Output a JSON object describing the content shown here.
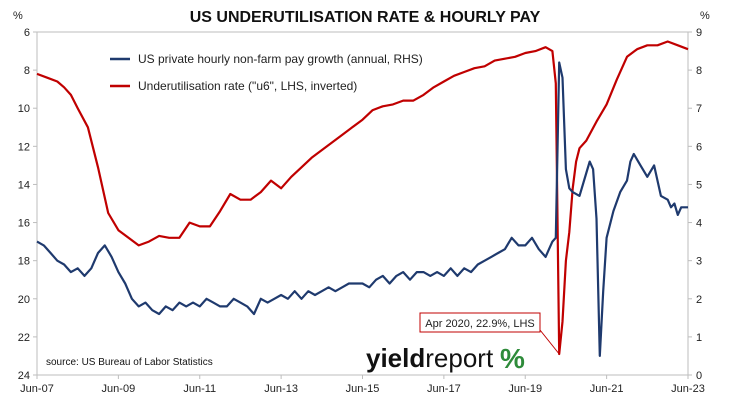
{
  "chart_data": {
    "type": "line",
    "title": "US UNDERUTILISATION RATE & HOURLY PAY",
    "left_axis": {
      "unit": "%",
      "inverted": true,
      "range": [
        24,
        6
      ],
      "ticks": [
        "6",
        "8",
        "10",
        "12",
        "14",
        "16",
        "18",
        "20",
        "22",
        "24"
      ]
    },
    "right_axis": {
      "unit": "%",
      "range": [
        0,
        9
      ],
      "ticks": [
        "0",
        "1",
        "2",
        "3",
        "4",
        "5",
        "6",
        "7",
        "8",
        "9"
      ]
    },
    "x_ticks": [
      "Jun-07",
      "Jun-09",
      "Jun-11",
      "Jun-13",
      "Jun-15",
      "Jun-17",
      "Jun-19",
      "Jun-21",
      "Jun-23"
    ],
    "x_range": [
      "2007-06",
      "2023-06"
    ],
    "grid": false,
    "legend_position": "top-left",
    "series": [
      {
        "name": "US private hourly non-farm pay growth (annual, RHS)",
        "axis": "right",
        "color": "#1f3a6e",
        "points": [
          [
            "2007-06",
            3.5
          ],
          [
            "2007-08",
            3.4
          ],
          [
            "2007-10",
            3.2
          ],
          [
            "2007-12",
            3.0
          ],
          [
            "2008-02",
            2.9
          ],
          [
            "2008-04",
            2.7
          ],
          [
            "2008-06",
            2.8
          ],
          [
            "2008-08",
            2.6
          ],
          [
            "2008-10",
            2.8
          ],
          [
            "2008-12",
            3.2
          ],
          [
            "2009-02",
            3.4
          ],
          [
            "2009-04",
            3.1
          ],
          [
            "2009-06",
            2.7
          ],
          [
            "2009-08",
            2.4
          ],
          [
            "2009-10",
            2.0
          ],
          [
            "2009-12",
            1.8
          ],
          [
            "2010-02",
            1.9
          ],
          [
            "2010-04",
            1.7
          ],
          [
            "2010-06",
            1.6
          ],
          [
            "2010-08",
            1.8
          ],
          [
            "2010-10",
            1.7
          ],
          [
            "2010-12",
            1.9
          ],
          [
            "2011-02",
            1.8
          ],
          [
            "2011-04",
            1.9
          ],
          [
            "2011-06",
            1.8
          ],
          [
            "2011-08",
            2.0
          ],
          [
            "2011-10",
            1.9
          ],
          [
            "2011-12",
            1.8
          ],
          [
            "2012-02",
            1.8
          ],
          [
            "2012-04",
            2.0
          ],
          [
            "2012-06",
            1.9
          ],
          [
            "2012-08",
            1.8
          ],
          [
            "2012-10",
            1.6
          ],
          [
            "2012-12",
            2.0
          ],
          [
            "2013-02",
            1.9
          ],
          [
            "2013-04",
            2.0
          ],
          [
            "2013-06",
            2.1
          ],
          [
            "2013-08",
            2.0
          ],
          [
            "2013-10",
            2.2
          ],
          [
            "2013-12",
            2.0
          ],
          [
            "2014-02",
            2.2
          ],
          [
            "2014-04",
            2.1
          ],
          [
            "2014-06",
            2.2
          ],
          [
            "2014-08",
            2.3
          ],
          [
            "2014-10",
            2.2
          ],
          [
            "2014-12",
            2.3
          ],
          [
            "2015-02",
            2.4
          ],
          [
            "2015-04",
            2.4
          ],
          [
            "2015-06",
            2.4
          ],
          [
            "2015-08",
            2.3
          ],
          [
            "2015-10",
            2.5
          ],
          [
            "2015-12",
            2.6
          ],
          [
            "2016-02",
            2.4
          ],
          [
            "2016-04",
            2.6
          ],
          [
            "2016-06",
            2.7
          ],
          [
            "2016-08",
            2.5
          ],
          [
            "2016-10",
            2.7
          ],
          [
            "2016-12",
            2.7
          ],
          [
            "2017-02",
            2.6
          ],
          [
            "2017-04",
            2.7
          ],
          [
            "2017-06",
            2.6
          ],
          [
            "2017-08",
            2.8
          ],
          [
            "2017-10",
            2.6
          ],
          [
            "2017-12",
            2.8
          ],
          [
            "2018-02",
            2.7
          ],
          [
            "2018-04",
            2.9
          ],
          [
            "2018-06",
            3.0
          ],
          [
            "2018-08",
            3.1
          ],
          [
            "2018-10",
            3.2
          ],
          [
            "2018-12",
            3.3
          ],
          [
            "2019-02",
            3.6
          ],
          [
            "2019-04",
            3.4
          ],
          [
            "2019-06",
            3.4
          ],
          [
            "2019-08",
            3.6
          ],
          [
            "2019-10",
            3.3
          ],
          [
            "2019-12",
            3.1
          ],
          [
            "2020-01",
            3.3
          ],
          [
            "2020-02",
            3.5
          ],
          [
            "2020-03",
            3.6
          ],
          [
            "2020-04",
            8.2
          ],
          [
            "2020-05",
            7.8
          ],
          [
            "2020-06",
            5.4
          ],
          [
            "2020-07",
            4.9
          ],
          [
            "2020-08",
            4.8
          ],
          [
            "2020-10",
            4.7
          ],
          [
            "2020-12",
            5.3
          ],
          [
            "2021-01",
            5.6
          ],
          [
            "2021-02",
            5.4
          ],
          [
            "2021-03",
            4.1
          ],
          [
            "2021-04",
            0.5
          ],
          [
            "2021-05",
            2.2
          ],
          [
            "2021-06",
            3.6
          ],
          [
            "2021-08",
            4.3
          ],
          [
            "2021-10",
            4.8
          ],
          [
            "2021-12",
            5.1
          ],
          [
            "2022-01",
            5.6
          ],
          [
            "2022-02",
            5.8
          ],
          [
            "2022-04",
            5.5
          ],
          [
            "2022-06",
            5.2
          ],
          [
            "2022-08",
            5.5
          ],
          [
            "2022-10",
            4.7
          ],
          [
            "2022-12",
            4.6
          ],
          [
            "2023-01",
            4.4
          ],
          [
            "2023-02",
            4.5
          ],
          [
            "2023-03",
            4.2
          ],
          [
            "2023-04",
            4.4
          ],
          [
            "2023-06",
            4.4
          ]
        ]
      },
      {
        "name": "Underutilisation rate (\"u6\", LHS, inverted)",
        "axis": "left",
        "color": "#c00000",
        "points": [
          [
            "2007-06",
            8.2
          ],
          [
            "2007-09",
            8.4
          ],
          [
            "2007-12",
            8.6
          ],
          [
            "2008-02",
            8.9
          ],
          [
            "2008-04",
            9.3
          ],
          [
            "2008-06",
            10.0
          ],
          [
            "2008-09",
            11.0
          ],
          [
            "2008-12",
            13.1
          ],
          [
            "2009-03",
            15.5
          ],
          [
            "2009-06",
            16.4
          ],
          [
            "2009-09",
            16.8
          ],
          [
            "2009-12",
            17.2
          ],
          [
            "2010-03",
            17.0
          ],
          [
            "2010-06",
            16.7
          ],
          [
            "2010-09",
            16.8
          ],
          [
            "2010-12",
            16.8
          ],
          [
            "2011-03",
            16.0
          ],
          [
            "2011-06",
            16.2
          ],
          [
            "2011-09",
            16.2
          ],
          [
            "2011-12",
            15.4
          ],
          [
            "2012-03",
            14.5
          ],
          [
            "2012-06",
            14.8
          ],
          [
            "2012-09",
            14.8
          ],
          [
            "2012-12",
            14.4
          ],
          [
            "2013-03",
            13.8
          ],
          [
            "2013-06",
            14.2
          ],
          [
            "2013-09",
            13.6
          ],
          [
            "2013-12",
            13.1
          ],
          [
            "2014-03",
            12.6
          ],
          [
            "2014-06",
            12.2
          ],
          [
            "2014-09",
            11.8
          ],
          [
            "2014-12",
            11.4
          ],
          [
            "2015-03",
            11.0
          ],
          [
            "2015-06",
            10.6
          ],
          [
            "2015-09",
            10.1
          ],
          [
            "2015-12",
            9.9
          ],
          [
            "2016-03",
            9.8
          ],
          [
            "2016-06",
            9.6
          ],
          [
            "2016-09",
            9.6
          ],
          [
            "2016-12",
            9.3
          ],
          [
            "2017-03",
            8.9
          ],
          [
            "2017-06",
            8.6
          ],
          [
            "2017-09",
            8.3
          ],
          [
            "2017-12",
            8.1
          ],
          [
            "2018-03",
            7.9
          ],
          [
            "2018-06",
            7.8
          ],
          [
            "2018-09",
            7.5
          ],
          [
            "2018-12",
            7.4
          ],
          [
            "2019-03",
            7.3
          ],
          [
            "2019-06",
            7.1
          ],
          [
            "2019-09",
            7.0
          ],
          [
            "2019-12",
            6.8
          ],
          [
            "2020-02",
            7.0
          ],
          [
            "2020-03",
            8.7
          ],
          [
            "2020-04",
            22.9
          ],
          [
            "2020-05",
            21.2
          ],
          [
            "2020-06",
            18.0
          ],
          [
            "2020-07",
            16.5
          ],
          [
            "2020-08",
            14.2
          ],
          [
            "2020-09",
            12.8
          ],
          [
            "2020-10",
            12.1
          ],
          [
            "2020-12",
            11.7
          ],
          [
            "2021-03",
            10.7
          ],
          [
            "2021-06",
            9.8
          ],
          [
            "2021-09",
            8.5
          ],
          [
            "2021-12",
            7.3
          ],
          [
            "2022-03",
            6.9
          ],
          [
            "2022-06",
            6.7
          ],
          [
            "2022-09",
            6.7
          ],
          [
            "2022-12",
            6.5
          ],
          [
            "2023-03",
            6.7
          ],
          [
            "2023-06",
            6.9
          ]
        ]
      }
    ],
    "annotations": [
      {
        "text": "Apr 2020, 22.9%, LHS",
        "x": "2020-04",
        "y": 22.9,
        "axis": "left"
      }
    ],
    "source": "source: US Bureau of Labor Statistics"
  },
  "branding": {
    "logo_bold": "yield",
    "logo_light": "report",
    "logo_symbol": "%"
  }
}
